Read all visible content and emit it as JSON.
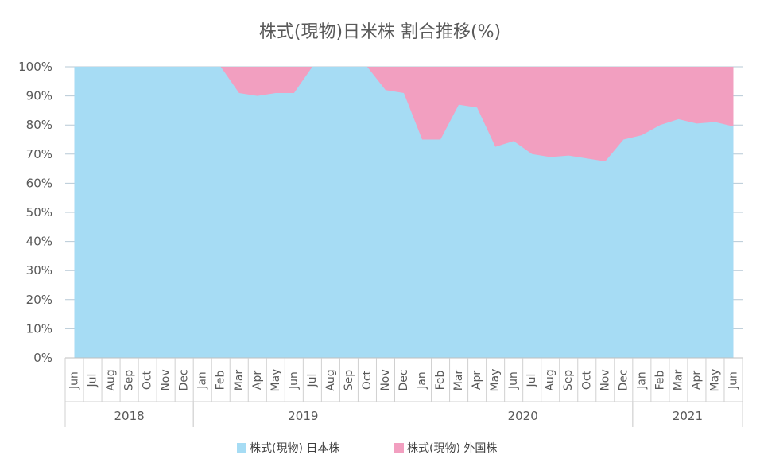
{
  "chart_data": {
    "type": "area",
    "stacked": true,
    "title": "株式(現物)日米株 割合推移(%)",
    "xlabel": "",
    "ylabel": "",
    "ylim": [
      0,
      100
    ],
    "y_ticks": [
      "0%",
      "10%",
      "20%",
      "30%",
      "40%",
      "50%",
      "60%",
      "70%",
      "80%",
      "90%",
      "100%"
    ],
    "grid": true,
    "legend_position": "bottom",
    "categories": [
      "Jun",
      "Jul",
      "Aug",
      "Sep",
      "Oct",
      "Nov",
      "Dec",
      "Jan",
      "Feb",
      "Mar",
      "Apr",
      "May",
      "Jun",
      "Jul",
      "Aug",
      "Sep",
      "Oct",
      "Nov",
      "Dec",
      "Jan",
      "Feb",
      "Mar",
      "Apr",
      "May",
      "Jun",
      "Jul",
      "Aug",
      "Sep",
      "Oct",
      "Nov",
      "Dec",
      "Jan",
      "Feb",
      "Mar",
      "Apr",
      "May",
      "Jun"
    ],
    "year_groups": [
      {
        "label": "2018",
        "start": 0,
        "end": 6
      },
      {
        "label": "2019",
        "start": 7,
        "end": 18
      },
      {
        "label": "2020",
        "start": 19,
        "end": 30
      },
      {
        "label": "2021",
        "start": 31,
        "end": 36
      }
    ],
    "series": [
      {
        "name": "株式(現物)  日本株",
        "color": "#a6dcf4",
        "values": [
          100,
          100,
          100,
          100,
          100,
          100,
          100,
          100,
          100,
          91,
          90,
          91,
          91,
          100,
          100,
          100,
          100,
          92,
          91,
          75,
          75,
          87,
          86,
          72.5,
          74.5,
          70,
          69,
          69.5,
          68.5,
          67.5,
          75,
          76.5,
          80,
          82,
          80.5,
          81,
          79.5
        ]
      },
      {
        "name": "株式(現物)  外国株",
        "color": "#f29fc0",
        "values": [
          0,
          0,
          0,
          0,
          0,
          0,
          0,
          0,
          0,
          9,
          10,
          9,
          9,
          0,
          0,
          0,
          0,
          8,
          9,
          25,
          25,
          13,
          14,
          27.5,
          25.5,
          30,
          31,
          30.5,
          31.5,
          32.5,
          25,
          23.5,
          20,
          18,
          19.5,
          19,
          20.5
        ]
      }
    ]
  }
}
